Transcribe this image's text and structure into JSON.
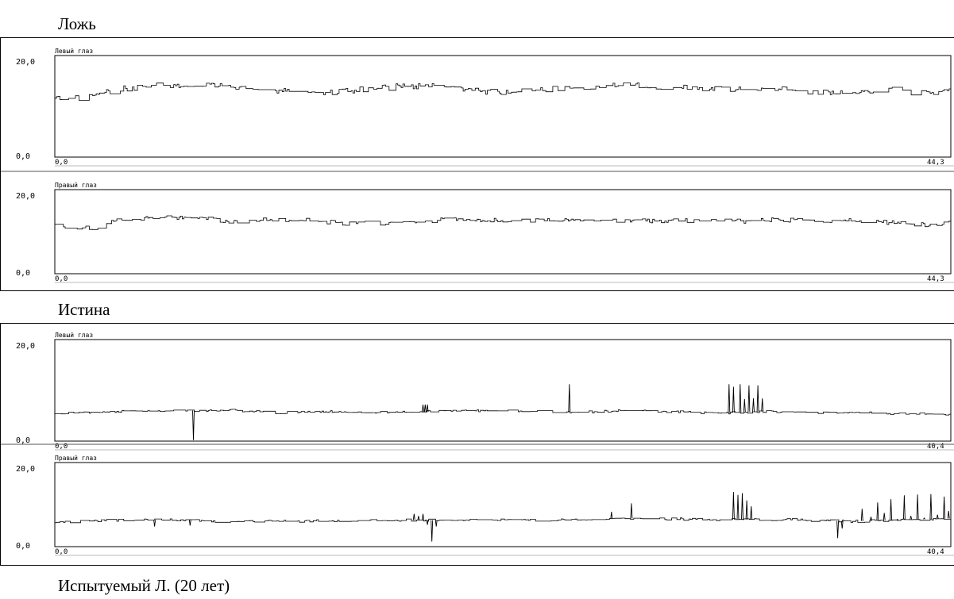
{
  "sections": [
    {
      "title": "Ложь"
    },
    {
      "title": "Истина"
    }
  ],
  "footer": {
    "caption": "Испытуемый Л. (20 лет)"
  },
  "chart_data": [
    {
      "type": "line",
      "group": "Ложь",
      "title": "Левый глаз",
      "ylim": [
        0,
        20
      ],
      "xlim": [
        0,
        44.3
      ],
      "y_tick_labels": [
        "20,0",
        "0,0"
      ],
      "x_tick_labels": [
        "0,0",
        "44,3"
      ],
      "baseline": 12.8,
      "amplitude": 1.0,
      "x": [
        0,
        1.5,
        3,
        4.5,
        8,
        10,
        13,
        17,
        19,
        22,
        28,
        31,
        33,
        36,
        39,
        41,
        43,
        44.3
      ],
      "y": [
        11.6,
        11.7,
        13.3,
        14.0,
        14.0,
        13.3,
        12.6,
        13.9,
        14.2,
        12.6,
        14.3,
        13.6,
        13.3,
        13.3,
        12.5,
        13.4,
        12.5,
        13.3
      ],
      "spikes": []
    },
    {
      "type": "line",
      "group": "Ложь",
      "title": "Правый глаз",
      "ylim": [
        0,
        20
      ],
      "xlim": [
        0,
        44.3
      ],
      "y_tick_labels": [
        "20,0",
        "0,0"
      ],
      "x_tick_labels": [
        "0,0",
        "44,3"
      ],
      "baseline": 12.2,
      "amplitude": 1.0,
      "x": [
        0,
        1,
        2,
        3,
        5,
        7,
        8.5,
        10,
        12,
        15,
        19,
        24,
        28,
        34,
        37,
        40,
        42,
        43.5,
        44.3
      ],
      "y": [
        11.4,
        10.8,
        11.1,
        12.6,
        13.4,
        13.5,
        12.6,
        12.7,
        12.7,
        11.9,
        12.7,
        12.6,
        12.5,
        12.6,
        12.8,
        12.5,
        11.9,
        11.6,
        12.8
      ],
      "spikes": []
    },
    {
      "type": "line",
      "group": "Истина",
      "title": "Левый глаз",
      "ylim": [
        0,
        20
      ],
      "xlim": [
        0,
        40.4
      ],
      "y_tick_labels": [
        "20,0",
        "0,0"
      ],
      "x_tick_labels": [
        "0,0",
        "40,4"
      ],
      "baseline": 5.7,
      "amplitude": 0.4,
      "x": [
        0,
        2,
        4,
        6,
        8,
        10,
        12,
        14,
        16,
        18,
        20,
        22,
        24,
        26,
        28,
        30,
        32,
        34,
        36,
        38,
        40.4
      ],
      "y": [
        5.4,
        5.7,
        5.9,
        6.0,
        6.1,
        5.6,
        5.8,
        5.6,
        5.7,
        5.9,
        6.0,
        5.8,
        5.7,
        6.1,
        5.8,
        5.5,
        5.9,
        5.6,
        5.7,
        5.4,
        5.3
      ],
      "spikes": [
        {
          "x": 6.25,
          "y": 0.2
        },
        {
          "x": 16.6,
          "y": 7.2
        },
        {
          "x": 16.7,
          "y": 7.2
        },
        {
          "x": 16.8,
          "y": 7.2
        },
        {
          "x": 23.2,
          "y": 11.2
        },
        {
          "x": 30.4,
          "y": 11.2
        },
        {
          "x": 30.6,
          "y": 10.7
        },
        {
          "x": 30.9,
          "y": 11.2
        },
        {
          "x": 31.1,
          "y": 8.3
        },
        {
          "x": 31.3,
          "y": 11.0
        },
        {
          "x": 31.5,
          "y": 8.4
        },
        {
          "x": 31.7,
          "y": 11.0
        },
        {
          "x": 31.9,
          "y": 8.4
        }
      ]
    },
    {
      "type": "line",
      "group": "Истина",
      "title": "Правый глаз",
      "ylim": [
        0,
        20
      ],
      "xlim": [
        0,
        40.4
      ],
      "y_tick_labels": [
        "20,0",
        "0,0"
      ],
      "x_tick_labels": [
        "0,0",
        "40,4"
      ],
      "baseline": 6.0,
      "amplitude": 0.5,
      "x": [
        0,
        2,
        4,
        6,
        8,
        10,
        12,
        14,
        16,
        18,
        20,
        22,
        24,
        26,
        28,
        30,
        32,
        34,
        36,
        38,
        40.4
      ],
      "y": [
        5.7,
        6.2,
        6.3,
        6.4,
        5.9,
        6.0,
        6.2,
        6.1,
        6.3,
        6.3,
        6.5,
        6.3,
        6.4,
        6.7,
        6.6,
        6.4,
        6.5,
        6.3,
        6.0,
        6.4,
        6.7
      ],
      "spikes": [
        {
          "x": 4.5,
          "y": 4.8
        },
        {
          "x": 6.1,
          "y": 5.0
        },
        {
          "x": 16.2,
          "y": 7.8
        },
        {
          "x": 16.4,
          "y": 7.3
        },
        {
          "x": 16.6,
          "y": 7.8
        },
        {
          "x": 16.8,
          "y": 5.2
        },
        {
          "x": 17.0,
          "y": 1.2
        },
        {
          "x": 17.2,
          "y": 4.8
        },
        {
          "x": 25.1,
          "y": 8.3
        },
        {
          "x": 26.0,
          "y": 10.3
        },
        {
          "x": 30.6,
          "y": 13.0
        },
        {
          "x": 30.8,
          "y": 12.3
        },
        {
          "x": 31.0,
          "y": 12.7
        },
        {
          "x": 31.2,
          "y": 11.0
        },
        {
          "x": 31.4,
          "y": 9.6
        },
        {
          "x": 35.3,
          "y": 2.0
        },
        {
          "x": 35.5,
          "y": 4.3
        },
        {
          "x": 36.4,
          "y": 9.0
        },
        {
          "x": 36.8,
          "y": 7.1
        },
        {
          "x": 37.1,
          "y": 10.5
        },
        {
          "x": 37.4,
          "y": 8.0
        },
        {
          "x": 37.7,
          "y": 11.3
        },
        {
          "x": 38.0,
          "y": 6.5
        },
        {
          "x": 38.3,
          "y": 12.2
        },
        {
          "x": 38.6,
          "y": 7.3
        },
        {
          "x": 38.9,
          "y": 12.4
        },
        {
          "x": 39.2,
          "y": 6.8
        },
        {
          "x": 39.5,
          "y": 12.5
        },
        {
          "x": 39.8,
          "y": 7.6
        },
        {
          "x": 40.1,
          "y": 11.9
        },
        {
          "x": 40.3,
          "y": 8.5
        }
      ]
    }
  ]
}
